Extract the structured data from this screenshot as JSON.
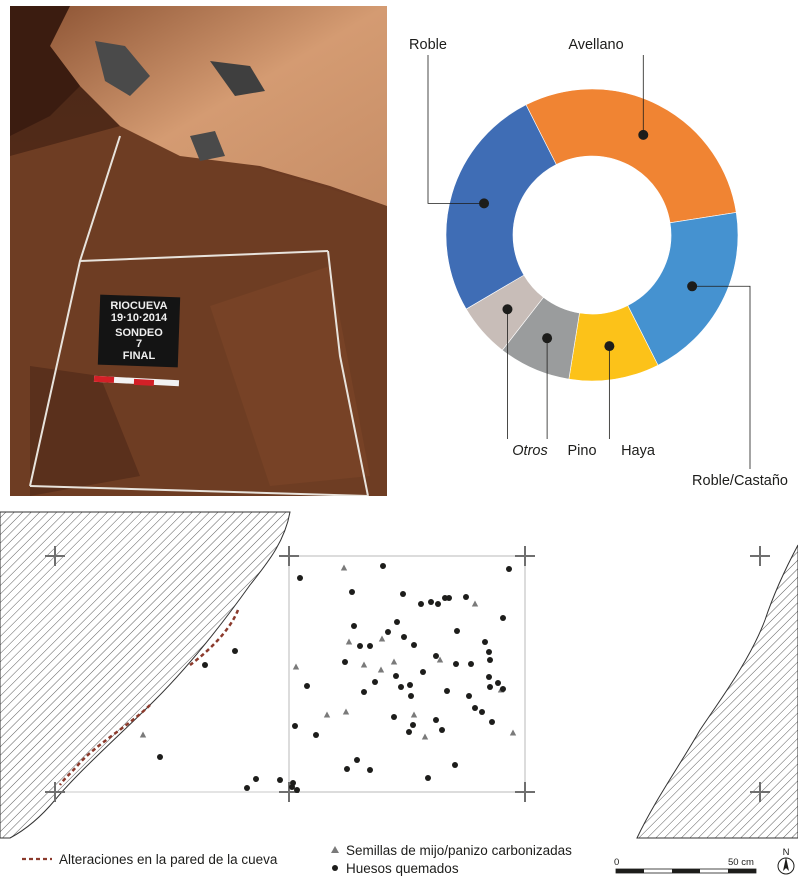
{
  "photo": {
    "board_lines": [
      "RIOCUEVA",
      "19·10·2014",
      "SONDEO",
      "7",
      "FINAL"
    ]
  },
  "chart_data": [
    {
      "type": "pie",
      "style": "donut",
      "categories": [
        "Avellano",
        "Roble/Castaño",
        "Haya",
        "Pino",
        "Otros",
        "Roble"
      ],
      "values": [
        30,
        20,
        10,
        8,
        6,
        26
      ],
      "colors": [
        "#f08433",
        "#4592d0",
        "#fcc219",
        "#9a9c9d",
        "#c8bdb8",
        "#3f6db5"
      ],
      "label_style": {
        "Otros": "italic"
      }
    },
    {
      "type": "scatter",
      "series": [
        {
          "name": "Semillas de mijo/panizo carbonizadas",
          "marker": "triangle",
          "color": "#7a7a7a",
          "points": [
            [
              344,
              568
            ],
            [
              296,
              667
            ],
            [
              349,
              642
            ],
            [
              382,
              639
            ],
            [
              394,
              662
            ],
            [
              364,
              665
            ],
            [
              381,
              670
            ],
            [
              440,
              660
            ],
            [
              501,
              690
            ],
            [
              513,
              733
            ],
            [
              475,
              604
            ],
            [
              327,
              715
            ],
            [
              346,
              712
            ],
            [
              414,
              715
            ],
            [
              425,
              737
            ],
            [
              143,
              735
            ]
          ]
        },
        {
          "name": "Huesos quemados",
          "marker": "circle",
          "color": "#1d1d1b",
          "points": [
            [
              300,
              578
            ],
            [
              383,
              566
            ],
            [
              509,
              569
            ],
            [
              403,
              594
            ],
            [
              352,
              592
            ],
            [
              421,
              604
            ],
            [
              431,
              602
            ],
            [
              438,
              604
            ],
            [
              445,
              598
            ],
            [
              449,
              598
            ],
            [
              466,
              597
            ],
            [
              503,
              618
            ],
            [
              457,
              631
            ],
            [
              397,
              622
            ],
            [
              354,
              626
            ],
            [
              370,
              646
            ],
            [
              388,
              632
            ],
            [
              404,
              637
            ],
            [
              414,
              645
            ],
            [
              485,
              642
            ],
            [
              489,
              652
            ],
            [
              360,
              646
            ],
            [
              490,
              660
            ],
            [
              345,
              662
            ],
            [
              375,
              682
            ],
            [
              396,
              676
            ],
            [
              401,
              687
            ],
            [
              410,
              685
            ],
            [
              423,
              672
            ],
            [
              436,
              656
            ],
            [
              456,
              664
            ],
            [
              471,
              664
            ],
            [
              489,
              677
            ],
            [
              498,
              683
            ],
            [
              503,
              689
            ],
            [
              490,
              687
            ],
            [
              307,
              686
            ],
            [
              364,
              692
            ],
            [
              411,
              696
            ],
            [
              447,
              691
            ],
            [
              469,
              696
            ],
            [
              475,
              708
            ],
            [
              482,
              712
            ],
            [
              492,
              722
            ],
            [
              436,
              720
            ],
            [
              442,
              730
            ],
            [
              413,
              725
            ],
            [
              409,
              732
            ],
            [
              394,
              717
            ],
            [
              316,
              735
            ],
            [
              295,
              726
            ],
            [
              235,
              651
            ],
            [
              205,
              665
            ],
            [
              160,
              757
            ],
            [
              347,
              769
            ],
            [
              370,
              770
            ],
            [
              357,
              760
            ],
            [
              428,
              778
            ],
            [
              455,
              765
            ],
            [
              256,
              779
            ],
            [
              280,
              780
            ],
            [
              247,
              788
            ],
            [
              292,
              787
            ],
            [
              293,
              783
            ],
            [
              297,
              790
            ]
          ]
        }
      ]
    }
  ],
  "plan": {
    "grid_crosses": [
      [
        55,
        556
      ],
      [
        289,
        556
      ],
      [
        525,
        556
      ],
      [
        760,
        556
      ],
      [
        55,
        792
      ],
      [
        289,
        792
      ],
      [
        525,
        792
      ],
      [
        760,
        792
      ]
    ]
  },
  "legend": {
    "wall_label": "Alteraciones en la pared de la cueva",
    "seeds_label": "Semillas de mijo/panizo carbonizadas",
    "bones_label": "Huesos quemados",
    "wall_color": "#8b3a2c"
  },
  "scale_bar": {
    "start_label": "0",
    "end_label": "50 cm",
    "north_label": "N"
  }
}
